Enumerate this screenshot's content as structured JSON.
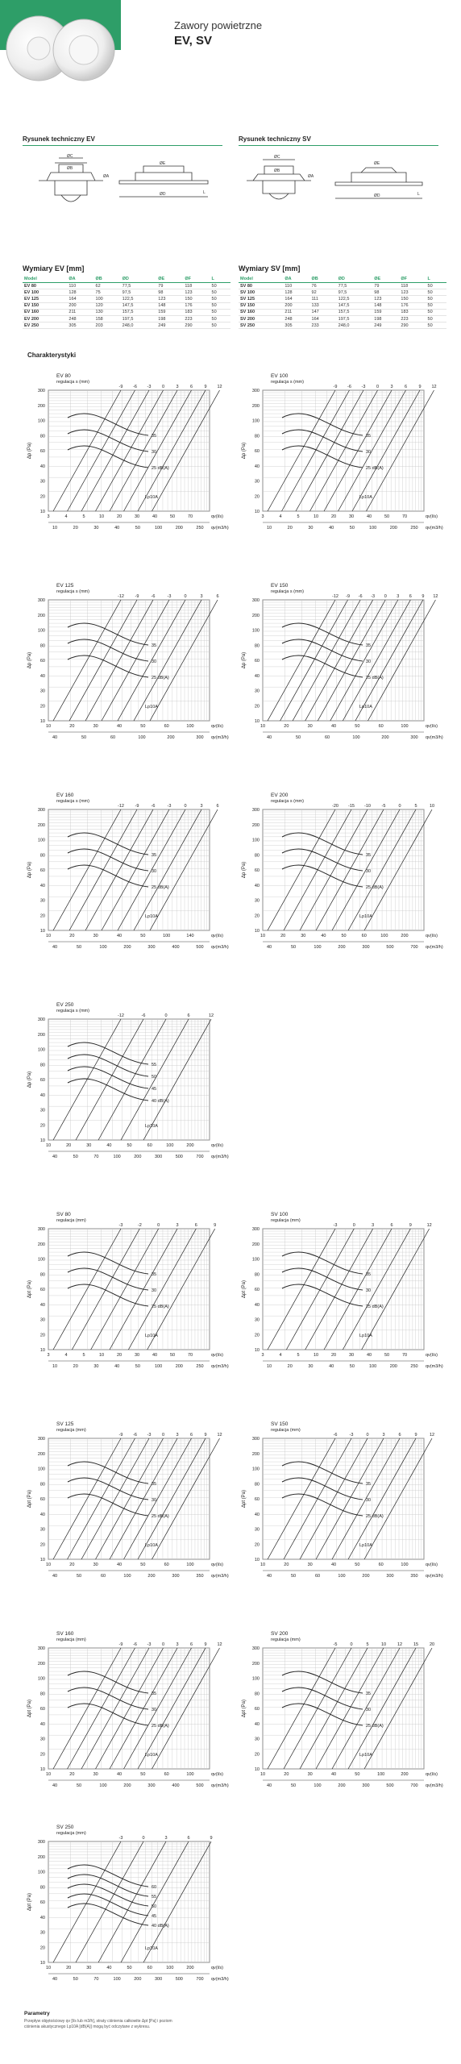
{
  "header": {
    "subtitle": "Zawory powietrzne",
    "title": "EV, SV"
  },
  "drawings": {
    "ev_title": "Rysunek techniczny EV",
    "sv_title": "Rysunek techniczny SV",
    "labels": {
      "oc": "ØC",
      "ob": "ØB",
      "oa": "ØA",
      "od": "ØD",
      "oe": "ØE",
      "l": "L"
    }
  },
  "tables": {
    "ev": {
      "title": "Wymiary EV [mm]",
      "headers": [
        "Model",
        "ØA",
        "ØB",
        "ØD",
        "ØE",
        "ØF",
        "L"
      ],
      "rows": [
        [
          "EV 80",
          "110",
          "62",
          "77,5",
          "79",
          "118",
          "50"
        ],
        [
          "EV 100",
          "128",
          "75",
          "97,5",
          "98",
          "123",
          "50"
        ],
        [
          "EV 125",
          "164",
          "100",
          "122,5",
          "123",
          "150",
          "50"
        ],
        [
          "EV 150",
          "200",
          "120",
          "147,5",
          "148",
          "176",
          "50"
        ],
        [
          "EV 160",
          "211",
          "130",
          "157,5",
          "159",
          "183",
          "50"
        ],
        [
          "EV 200",
          "248",
          "158",
          "197,5",
          "198",
          "223",
          "50"
        ],
        [
          "EV 250",
          "305",
          "203",
          "248,0",
          "249",
          "290",
          "50"
        ]
      ]
    },
    "sv": {
      "title": "Wymiary SV [mm]",
      "headers": [
        "Model",
        "ØA",
        "ØB",
        "ØD",
        "ØE",
        "ØF",
        "L"
      ],
      "rows": [
        [
          "SV 80",
          "110",
          "76",
          "77,5",
          "79",
          "118",
          "50"
        ],
        [
          "SV 100",
          "128",
          "92",
          "97,5",
          "98",
          "123",
          "50"
        ],
        [
          "SV 125",
          "164",
          "111",
          "122,5",
          "123",
          "150",
          "50"
        ],
        [
          "SV 150",
          "200",
          "133",
          "147,5",
          "148",
          "176",
          "50"
        ],
        [
          "SV 160",
          "211",
          "147",
          "157,5",
          "159",
          "183",
          "50"
        ],
        [
          "SV 200",
          "248",
          "164",
          "197,5",
          "198",
          "223",
          "50"
        ],
        [
          "SV 250",
          "305",
          "233",
          "248,0",
          "249",
          "290",
          "50"
        ]
      ]
    }
  },
  "characteristics_title": "Charakterystyki",
  "chart_data": [
    {
      "type": "line",
      "model": "EV 80",
      "caption": "regulacja s (mm)",
      "ylabel": "Δp (Pa)",
      "xlabel_ls": "qv(l/s)",
      "xlabel_m3h": "qv(m3/h)",
      "yticks": [
        "300",
        "200",
        "100",
        "80",
        "60",
        "40",
        "30",
        "20",
        "10"
      ],
      "xticks_ls": [
        "3",
        "4",
        "5",
        "10",
        "20",
        "30",
        "40",
        "50",
        "70"
      ],
      "xticks_m3h": [
        "10",
        "20",
        "30",
        "40",
        "50",
        "100",
        "200",
        "250"
      ],
      "settings": [
        "-9",
        "-6",
        "-3",
        "0",
        "3",
        "6",
        "9",
        "12"
      ],
      "noise": [
        "35",
        "30",
        "25 dB(A)"
      ],
      "lp_label": "Lp10A"
    },
    {
      "type": "line",
      "model": "EV 100",
      "caption": "regulacja s (mm)",
      "ylabel": "Δp (Pa)",
      "xlabel_ls": "qv(l/s)",
      "xlabel_m3h": "qv(m3/h)",
      "yticks": [
        "300",
        "200",
        "100",
        "80",
        "60",
        "40",
        "30",
        "20",
        "10"
      ],
      "xticks_ls": [
        "3",
        "4",
        "5",
        "10",
        "20",
        "30",
        "40",
        "50",
        "70"
      ],
      "xticks_m3h": [
        "10",
        "20",
        "30",
        "40",
        "50",
        "100",
        "200",
        "250"
      ],
      "settings": [
        "-9",
        "-6",
        "-3",
        "0",
        "3",
        "6",
        "9",
        "12"
      ],
      "noise": [
        "35",
        "30",
        "25 dB(A)"
      ],
      "lp_label": "Lp10A"
    },
    {
      "type": "line",
      "model": "EV 125",
      "caption": "regulacja s (mm)",
      "ylabel": "Δp (Pa)",
      "xlabel_ls": "qv(l/s)",
      "xlabel_m3h": "qv(m3/h)",
      "yticks": [
        "300",
        "200",
        "100",
        "80",
        "60",
        "40",
        "30",
        "20",
        "10"
      ],
      "xticks_ls": [
        "10",
        "20",
        "30",
        "40",
        "50",
        "60",
        "100"
      ],
      "xticks_m3h": [
        "40",
        "50",
        "60",
        "100",
        "200",
        "300"
      ],
      "settings": [
        "-12",
        "-9",
        "-6",
        "-3",
        "0",
        "3",
        "6"
      ],
      "noise": [
        "35",
        "30",
        "25 dB(A)"
      ],
      "lp_label": "Lp10A"
    },
    {
      "type": "line",
      "model": "EV 150",
      "caption": "regulacja s (mm)",
      "ylabel": "Δp (Pa)",
      "xlabel_ls": "qv(l/s)",
      "xlabel_m3h": "qv(m3/h)",
      "yticks": [
        "300",
        "200",
        "100",
        "80",
        "60",
        "40",
        "30",
        "20",
        "10"
      ],
      "xticks_ls": [
        "10",
        "20",
        "30",
        "40",
        "50",
        "60",
        "100"
      ],
      "xticks_m3h": [
        "40",
        "50",
        "60",
        "100",
        "200",
        "300"
      ],
      "settings": [
        "-12",
        "-9",
        "-6",
        "-3",
        "0",
        "3",
        "6",
        "9",
        "12"
      ],
      "noise": [
        "35",
        "30",
        "25 dB(A)"
      ],
      "lp_label": "Lp10A"
    },
    {
      "type": "line",
      "model": "EV 160",
      "caption": "regulacja s (mm)",
      "ylabel": "Δp (Pa)",
      "xlabel_ls": "qv(l/s)",
      "xlabel_m3h": "qv(m3/h)",
      "yticks": [
        "300",
        "200",
        "100",
        "80",
        "60",
        "40",
        "30",
        "20",
        "10"
      ],
      "xticks_ls": [
        "10",
        "20",
        "30",
        "40",
        "50",
        "100",
        "140"
      ],
      "xticks_m3h": [
        "40",
        "50",
        "100",
        "200",
        "300",
        "400",
        "500"
      ],
      "settings": [
        "-12",
        "-9",
        "-6",
        "-3",
        "0",
        "3",
        "6"
      ],
      "noise": [
        "35",
        "30",
        "25 dB(A)"
      ],
      "lp_label": "Lp10A"
    },
    {
      "type": "line",
      "model": "EV 200",
      "caption": "regulacja s (mm)",
      "ylabel": "Δp (Pa)",
      "xlabel_ls": "qv(l/s)",
      "xlabel_m3h": "qv(m3/h)",
      "yticks": [
        "300",
        "200",
        "100",
        "80",
        "60",
        "40",
        "30",
        "20",
        "10"
      ],
      "xticks_ls": [
        "10",
        "20",
        "30",
        "40",
        "50",
        "60",
        "100",
        "200"
      ],
      "xticks_m3h": [
        "40",
        "50",
        "100",
        "200",
        "300",
        "500",
        "700"
      ],
      "settings": [
        "-20",
        "-15",
        "-10",
        "-5",
        "0",
        "5",
        "10"
      ],
      "noise": [
        "35",
        "30",
        "25 dB(A)"
      ],
      "lp_label": "Lp10A"
    },
    {
      "type": "line",
      "model": "EV 250",
      "caption": "regulacja s (mm)",
      "ylabel": "Δp (Pa)",
      "xlabel_ls": "qv(l/s)",
      "xlabel_m3h": "qv(m3/h)",
      "yticks": [
        "300",
        "200",
        "100",
        "80",
        "60",
        "40",
        "30",
        "20",
        "10"
      ],
      "xticks_ls": [
        "10",
        "20",
        "30",
        "40",
        "50",
        "60",
        "100",
        "200"
      ],
      "xticks_m3h": [
        "40",
        "50",
        "70",
        "100",
        "200",
        "300",
        "500",
        "700"
      ],
      "settings": [
        "-12",
        "-6",
        "0",
        "6",
        "12"
      ],
      "noise": [
        "55",
        "50",
        "45",
        "40 dB(A)"
      ],
      "lp_label": "Lp10A"
    },
    {
      "type": "line",
      "model": "SV 80",
      "caption": "regulacja (mm)",
      "ylabel": "Δpt (Pa)",
      "xlabel_ls": "qv(l/s)",
      "xlabel_m3h": "qv(m3/h)",
      "yticks": [
        "300",
        "200",
        "100",
        "80",
        "60",
        "40",
        "30",
        "20",
        "10"
      ],
      "xticks_ls": [
        "3",
        "4",
        "5",
        "10",
        "20",
        "30",
        "40",
        "50",
        "70"
      ],
      "xticks_m3h": [
        "10",
        "20",
        "30",
        "40",
        "50",
        "100",
        "200",
        "250"
      ],
      "settings": [
        "-3",
        "-2",
        "0",
        "3",
        "6",
        "9"
      ],
      "noise": [
        "35",
        "30",
        "25 dB(A)"
      ],
      "lp_label": "Lp10A"
    },
    {
      "type": "line",
      "model": "SV 100",
      "caption": "regulacja (mm)",
      "ylabel": "Δpt (Pa)",
      "xlabel_ls": "qv(l/s)",
      "xlabel_m3h": "qv(m3/h)",
      "yticks": [
        "300",
        "200",
        "100",
        "80",
        "60",
        "40",
        "30",
        "20",
        "10"
      ],
      "xticks_ls": [
        "3",
        "4",
        "5",
        "10",
        "20",
        "30",
        "40",
        "50",
        "70"
      ],
      "xticks_m3h": [
        "10",
        "20",
        "30",
        "40",
        "50",
        "100",
        "200",
        "250"
      ],
      "settings": [
        "-3",
        "0",
        "3",
        "6",
        "9",
        "12"
      ],
      "noise": [
        "35",
        "30",
        "25 dB(A)"
      ],
      "lp_label": "Lp10A"
    },
    {
      "type": "line",
      "model": "SV 125",
      "caption": "regulacja (mm)",
      "ylabel": "Δpt (Pa)",
      "xlabel_ls": "qv(l/s)",
      "xlabel_m3h": "qv(m3/h)",
      "yticks": [
        "300",
        "200",
        "100",
        "80",
        "60",
        "40",
        "30",
        "20",
        "10"
      ],
      "xticks_ls": [
        "10",
        "20",
        "30",
        "40",
        "50",
        "60",
        "100"
      ],
      "xticks_m3h": [
        "40",
        "50",
        "60",
        "100",
        "200",
        "300",
        "350"
      ],
      "settings": [
        "-9",
        "-6",
        "-3",
        "0",
        "3",
        "6",
        "9",
        "12"
      ],
      "noise": [
        "35",
        "30",
        "25 dB(A)"
      ],
      "lp_label": "Lp10A"
    },
    {
      "type": "line",
      "model": "SV 150",
      "caption": "regulacja (mm)",
      "ylabel": "Δpt (Pa)",
      "xlabel_ls": "qv(l/s)",
      "xlabel_m3h": "qv(m3/h)",
      "yticks": [
        "300",
        "200",
        "100",
        "80",
        "60",
        "40",
        "30",
        "20",
        "10"
      ],
      "xticks_ls": [
        "10",
        "20",
        "30",
        "40",
        "50",
        "60",
        "100"
      ],
      "xticks_m3h": [
        "40",
        "50",
        "60",
        "100",
        "200",
        "300",
        "350"
      ],
      "settings": [
        "-6",
        "-3",
        "0",
        "3",
        "6",
        "9",
        "12"
      ],
      "noise": [
        "35",
        "30",
        "25 dB(A)"
      ],
      "lp_label": "Lp10A"
    },
    {
      "type": "line",
      "model": "SV 160",
      "caption": "regulacja (mm)",
      "ylabel": "Δpt (Pa)",
      "xlabel_ls": "qv(l/s)",
      "xlabel_m3h": "qv(m3/h)",
      "yticks": [
        "300",
        "200",
        "100",
        "80",
        "60",
        "40",
        "30",
        "20",
        "10"
      ],
      "xticks_ls": [
        "10",
        "20",
        "30",
        "40",
        "50",
        "60",
        "100"
      ],
      "xticks_m3h": [
        "40",
        "50",
        "100",
        "200",
        "300",
        "400",
        "500"
      ],
      "settings": [
        "-9",
        "-6",
        "-3",
        "0",
        "3",
        "6",
        "9",
        "12"
      ],
      "noise": [
        "35",
        "30",
        "25 dB(A)"
      ],
      "lp_label": "Lp10A"
    },
    {
      "type": "line",
      "model": "SV 200",
      "caption": "regulacja (mm)",
      "ylabel": "Δpt (Pa)",
      "xlabel_ls": "qv(l/s)",
      "xlabel_m3h": "qv(m3/h)",
      "yticks": [
        "300",
        "200",
        "100",
        "80",
        "60",
        "40",
        "30",
        "20",
        "10"
      ],
      "xticks_ls": [
        "10",
        "20",
        "30",
        "40",
        "50",
        "100",
        "200"
      ],
      "xticks_m3h": [
        "40",
        "50",
        "100",
        "200",
        "300",
        "500",
        "700"
      ],
      "settings": [
        "-5",
        "0",
        "5",
        "10",
        "12",
        "15",
        "20"
      ],
      "noise": [
        "35",
        "30",
        "25 dB(A)"
      ],
      "lp_label": "Lp10A"
    },
    {
      "type": "line",
      "model": "SV 250",
      "caption": "regulacja (mm)",
      "ylabel": "Δpt (Pa)",
      "xlabel_ls": "qv(l/s)",
      "xlabel_m3h": "qv(m3/h)",
      "yticks": [
        "300",
        "200",
        "100",
        "80",
        "60",
        "40",
        "30",
        "20",
        "10"
      ],
      "xticks_ls": [
        "10",
        "20",
        "30",
        "40",
        "50",
        "60",
        "100",
        "200"
      ],
      "xticks_m3h": [
        "40",
        "50",
        "70",
        "100",
        "200",
        "300",
        "500",
        "700"
      ],
      "settings": [
        "-3",
        "0",
        "3",
        "6",
        "9"
      ],
      "noise": [
        "60",
        "55",
        "50",
        "45",
        "40 dB(A)"
      ],
      "lp_label": "Lp10A"
    }
  ],
  "footer": {
    "title": "Parametry",
    "text": "Przepływ objętościowy qv [l/s lub m3/h], straty ciśnienia całkowite Δpt [Pa] i poziom ciśnienia akustycznego Lp10A [dB(A)] mogą być odczytane z wykresu."
  },
  "colors": {
    "accent": "#2e9e68",
    "grid": "#c8c8c8",
    "curve": "#222222"
  }
}
